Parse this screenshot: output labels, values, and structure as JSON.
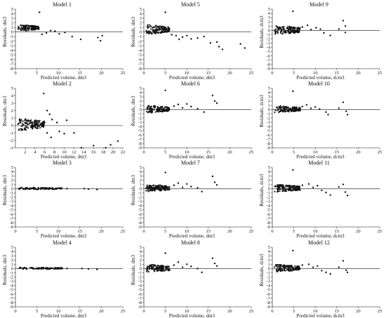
{
  "chart_data": [
    {
      "type": "scatter",
      "title": "Model 1",
      "xlabel": "Predicted volume, dm3",
      "ylabel": "Residuals, dm3",
      "xlim": [
        0,
        25
      ],
      "ylim": [
        -8,
        5
      ],
      "xticks": [
        0,
        5,
        10,
        15,
        20,
        25
      ],
      "yticks": [
        5,
        4,
        3,
        2,
        1,
        0,
        -1,
        -2,
        -3,
        -4,
        -5,
        -6,
        -7,
        -8
      ],
      "clusters": [
        {
          "x": [
            0.5,
            5.5
          ],
          "y": [
            0.2,
            1.6
          ],
          "n": 130
        }
      ],
      "points": [
        [
          5.6,
          4.3
        ],
        [
          6.2,
          -0.5
        ],
        [
          7.2,
          -0.2
        ],
        [
          8.2,
          0.3
        ],
        [
          9.2,
          0.2
        ],
        [
          10.2,
          -0.4
        ],
        [
          11.5,
          -0.1
        ],
        [
          13.2,
          -1.0
        ],
        [
          15.2,
          -1.6
        ],
        [
          19.2,
          -1.2
        ],
        [
          19.8,
          -1.9
        ],
        [
          20.2,
          -0.8
        ]
      ]
    },
    {
      "type": "scatter",
      "title": "Model 5",
      "xlabel": "Predicted volume, dm3",
      "ylabel": "Residuals, dm3",
      "xlim": [
        0,
        25
      ],
      "ylim": [
        -8,
        5
      ],
      "xticks": [
        0,
        5,
        10,
        15,
        20,
        25
      ],
      "yticks": [
        5,
        4,
        3,
        2,
        1,
        0,
        -1,
        -2,
        -3,
        -4,
        -5,
        -6,
        -7,
        -8
      ],
      "clusters": [
        {
          "x": [
            0.5,
            6
          ],
          "y": [
            -0.5,
            1.6
          ],
          "n": 130
        }
      ],
      "points": [
        [
          5.0,
          4.3
        ],
        [
          6.5,
          -0.6
        ],
        [
          7.5,
          -0.8
        ],
        [
          8.2,
          -1.6
        ],
        [
          9.0,
          -1.1
        ],
        [
          10.0,
          -0.8
        ],
        [
          11.0,
          -1.5
        ],
        [
          12.5,
          -1.3
        ],
        [
          14.0,
          -1.0
        ],
        [
          15.5,
          -2.4
        ],
        [
          17.0,
          -2.2
        ],
        [
          17.5,
          -3.2
        ],
        [
          18.3,
          -3.8
        ],
        [
          22.5,
          -2.6
        ],
        [
          23.5,
          -3.5
        ]
      ]
    },
    {
      "type": "scatter",
      "title": "Model 9",
      "xlabel": "Predicted volume, dcm3",
      "ylabel": "Residuals, dcm3",
      "xlim": [
        0,
        25
      ],
      "ylim": [
        -9,
        5
      ],
      "xticks": [
        0,
        5,
        10,
        15,
        20,
        25
      ],
      "yticks": [
        5,
        4,
        3,
        2,
        1,
        0,
        -1,
        -2,
        -3,
        -4,
        -5,
        -6,
        -7,
        -8,
        -9
      ],
      "clusters": [
        {
          "x": [
            0.5,
            6.5
          ],
          "y": [
            -1,
            1.2
          ],
          "n": 140
        }
      ],
      "points": [
        [
          4.8,
          4.5
        ],
        [
          7.0,
          0.8
        ],
        [
          8.2,
          1.2
        ],
        [
          9.0,
          0.2
        ],
        [
          10.2,
          0.6
        ],
        [
          11.2,
          0.3
        ],
        [
          12.0,
          -0.6
        ],
        [
          13.5,
          -1.2
        ],
        [
          15.5,
          0.3
        ],
        [
          16.5,
          2.3
        ],
        [
          17.0,
          1.0
        ],
        [
          17.0,
          -0.5
        ]
      ]
    },
    {
      "type": "scatter",
      "title": "Model 2",
      "xlabel": "Predicted volume, dm3",
      "ylabel": "Residuals, dm3",
      "xlim": [
        0,
        22
      ],
      "ylim": [
        -3,
        5
      ],
      "xticks": [
        2,
        4,
        6,
        8,
        10,
        12,
        14,
        16,
        18,
        20,
        22
      ],
      "yticks": [
        5,
        4,
        3,
        2,
        1,
        0,
        -1,
        -2,
        -3
      ],
      "clusters": [
        {
          "x": [
            0.5,
            6
          ],
          "y": [
            -0.7,
            1.0
          ],
          "n": 140
        }
      ],
      "points": [
        [
          5.8,
          4.3
        ],
        [
          6.5,
          2.0
        ],
        [
          7.0,
          1.5
        ],
        [
          7.5,
          0.8
        ],
        [
          8.5,
          0.4
        ],
        [
          6.5,
          -1.0
        ],
        [
          7.3,
          -1.6
        ],
        [
          9.0,
          -0.8
        ],
        [
          10.0,
          -1.1
        ],
        [
          10.5,
          0.7
        ],
        [
          12.0,
          -1.0
        ],
        [
          13.5,
          -3.0
        ],
        [
          16.0,
          -2.7
        ],
        [
          18.5,
          -3.0
        ],
        [
          19.5,
          -2.6
        ],
        [
          21.0,
          -2.1
        ]
      ]
    },
    {
      "type": "scatter",
      "title": "Model 6",
      "xlabel": "Predicted volume, dm3",
      "ylabel": "Residuals, dm3",
      "xlim": [
        0,
        25
      ],
      "ylim": [
        -9,
        5
      ],
      "xticks": [
        0,
        5,
        10,
        15,
        20,
        25
      ],
      "yticks": [
        5,
        4,
        3,
        2,
        1,
        0,
        -1,
        -2,
        -3,
        -4,
        -5,
        -6,
        -7,
        -8,
        -9
      ],
      "clusters": [
        {
          "x": [
            0.5,
            6
          ],
          "y": [
            -0.8,
            1.0
          ],
          "n": 140
        }
      ],
      "points": [
        [
          5.0,
          4.5
        ],
        [
          7.0,
          0.8
        ],
        [
          8.0,
          1.2
        ],
        [
          9.0,
          0.4
        ],
        [
          10.0,
          1.3
        ],
        [
          11.0,
          0.7
        ],
        [
          12.5,
          0.2
        ],
        [
          14.0,
          -0.6
        ],
        [
          16.0,
          3.3
        ],
        [
          16.5,
          2.0
        ],
        [
          17.0,
          1.5
        ]
      ]
    },
    {
      "type": "scatter",
      "title": "Model 10",
      "xlabel": "Predicted volume, dcm3",
      "ylabel": "Residuals, dcm3",
      "xlim": [
        0,
        25
      ],
      "ylim": [
        -9,
        5
      ],
      "xticks": [
        0,
        5,
        10,
        15,
        20,
        25
      ],
      "yticks": [
        5,
        4,
        3,
        2,
        1,
        0,
        -1,
        -2,
        -3,
        -4,
        -5,
        -6,
        -7,
        -8,
        -9
      ],
      "clusters": [
        {
          "x": [
            0.5,
            6.5
          ],
          "y": [
            -0.7,
            0.9
          ],
          "n": 140
        }
      ],
      "points": [
        [
          4.8,
          4.3
        ],
        [
          7.0,
          0.7
        ],
        [
          8.0,
          1.1
        ],
        [
          9.0,
          0.3
        ],
        [
          10.0,
          0.6
        ],
        [
          11.0,
          0.1
        ],
        [
          12.5,
          -0.6
        ],
        [
          13.0,
          -1.2
        ],
        [
          15.5,
          0.3
        ],
        [
          16.5,
          1.7
        ],
        [
          17.2,
          -0.4
        ],
        [
          17.5,
          -1.2
        ]
      ]
    },
    {
      "type": "scatter",
      "title": "Model 3",
      "xlabel": "Predicted volume, dm3",
      "ylabel": "Residuals, dm3",
      "xlim": [
        0,
        25
      ],
      "ylim": [
        -9,
        5
      ],
      "xticks": [
        0,
        5,
        10,
        15,
        20,
        25
      ],
      "yticks": [
        5,
        4,
        3,
        2,
        1,
        0,
        -1,
        -2,
        -3,
        -4,
        -5,
        -6,
        -7,
        -8,
        -9
      ],
      "clusters": [
        {
          "x": [
            0.5,
            11
          ],
          "y": [
            -0.2,
            0.3
          ],
          "n": 110
        }
      ],
      "points": [
        [
          12.0,
          0.0
        ],
        [
          16.0,
          0.0
        ],
        [
          17.0,
          -0.1
        ],
        [
          19.0,
          -0.2
        ],
        [
          7.0,
          0.1
        ],
        [
          9.0,
          -0.1
        ]
      ]
    },
    {
      "type": "scatter",
      "title": "Model 7",
      "xlabel": "Predicted volume, dm3",
      "ylabel": "Residuals, dm3",
      "xlim": [
        0,
        25
      ],
      "ylim": [
        -9,
        5
      ],
      "xticks": [
        0,
        5,
        10,
        15,
        20,
        25
      ],
      "yticks": [
        5,
        4,
        3,
        2,
        1,
        0,
        -1,
        -2,
        -3,
        -4,
        -5,
        -6,
        -7,
        -8,
        -9
      ],
      "clusters": [
        {
          "x": [
            0.5,
            6
          ],
          "y": [
            -0.7,
            1.0
          ],
          "n": 140
        }
      ],
      "points": [
        [
          5.0,
          3.8
        ],
        [
          7.0,
          0.8
        ],
        [
          8.0,
          1.3
        ],
        [
          9.0,
          0.3
        ],
        [
          10.0,
          1.1
        ],
        [
          11.0,
          0.5
        ],
        [
          12.5,
          0.2
        ],
        [
          13.5,
          -0.7
        ],
        [
          16.0,
          2.9
        ],
        [
          16.5,
          1.5
        ],
        [
          17.0,
          0.9
        ]
      ]
    },
    {
      "type": "scatter",
      "title": "Model 11",
      "xlabel": "Predicted volume, dcm3",
      "ylabel": "Residuals, dcm3",
      "xlim": [
        0,
        25
      ],
      "ylim": [
        -9,
        5
      ],
      "xticks": [
        0,
        5,
        10,
        15,
        20,
        25
      ],
      "yticks": [
        5,
        4,
        3,
        2,
        1,
        0,
        -1,
        -2,
        -3,
        -4,
        -5,
        -6,
        -7,
        -8,
        -9
      ],
      "clusters": [
        {
          "x": [
            0.5,
            6.5
          ],
          "y": [
            -0.8,
            1.0
          ],
          "n": 140
        }
      ],
      "points": [
        [
          4.8,
          4.4
        ],
        [
          7.0,
          0.8
        ],
        [
          8.5,
          1.1
        ],
        [
          9.5,
          0.3
        ],
        [
          10.5,
          0.7
        ],
        [
          11.5,
          -0.4
        ],
        [
          12.5,
          -0.9
        ],
        [
          13.5,
          -1.5
        ],
        [
          15.5,
          0.4
        ],
        [
          16.5,
          1.0
        ],
        [
          17.0,
          -0.8
        ],
        [
          17.5,
          -1.6
        ]
      ]
    },
    {
      "type": "scatter",
      "title": "Model 4",
      "xlabel": "Predicted volume, dm3",
      "ylabel": "Residuals, dm3",
      "xlim": [
        0,
        25
      ],
      "ylim": [
        -9,
        5
      ],
      "xticks": [
        0,
        5,
        10,
        15,
        20,
        25
      ],
      "yticks": [
        5,
        4,
        3,
        2,
        1,
        0,
        -1,
        -2,
        -3,
        -4,
        -5,
        -6,
        -7,
        -8,
        -9
      ],
      "clusters": [
        {
          "x": [
            0.5,
            11
          ],
          "y": [
            -0.2,
            0.3
          ],
          "n": 110
        }
      ],
      "points": [
        [
          12.0,
          0.0
        ],
        [
          15.5,
          0.0
        ],
        [
          17.0,
          -0.1
        ],
        [
          19.0,
          -0.2
        ],
        [
          7.0,
          0.1
        ],
        [
          9.0,
          -0.1
        ]
      ]
    },
    {
      "type": "scatter",
      "title": "Model 8",
      "xlabel": "Predicted volume, dm3",
      "ylabel": "Residuals, dm3",
      "xlim": [
        0,
        25
      ],
      "ylim": [
        -9,
        5
      ],
      "xticks": [
        0,
        5,
        10,
        15,
        20,
        25
      ],
      "yticks": [
        5,
        4,
        3,
        2,
        1,
        0,
        -1,
        -2,
        -3,
        -4,
        -5,
        -6,
        -7,
        -8,
        -9
      ],
      "clusters": [
        {
          "x": [
            0.5,
            6
          ],
          "y": [
            -0.9,
            1.0
          ],
          "n": 140
        }
      ],
      "points": [
        [
          5.0,
          3.6
        ],
        [
          7.0,
          0.8
        ],
        [
          8.0,
          1.5
        ],
        [
          9.0,
          0.3
        ],
        [
          10.0,
          1.0
        ],
        [
          11.0,
          0.5
        ],
        [
          12.5,
          0.0
        ],
        [
          13.5,
          -0.9
        ],
        [
          16.0,
          2.4
        ],
        [
          16.5,
          1.2
        ],
        [
          17.0,
          0.6
        ]
      ]
    },
    {
      "type": "scatter",
      "title": "Model 12",
      "xlabel": "Predicted volume, dcm3",
      "ylabel": "Residuals, dcm3",
      "xlim": [
        0,
        25
      ],
      "ylim": [
        -9,
        5
      ],
      "xticks": [
        0,
        5,
        10,
        15,
        20,
        25
      ],
      "yticks": [
        5,
        4,
        3,
        2,
        1,
        0,
        -1,
        -2,
        -3,
        -4,
        -5,
        -6,
        -7,
        -8,
        -9
      ],
      "clusters": [
        {
          "x": [
            0.5,
            6.5
          ],
          "y": [
            -0.8,
            1.0
          ],
          "n": 140
        }
      ],
      "points": [
        [
          4.8,
          4.2
        ],
        [
          7.0,
          0.8
        ],
        [
          8.5,
          1.0
        ],
        [
          9.5,
          0.3
        ],
        [
          10.5,
          0.6
        ],
        [
          11.5,
          -0.5
        ],
        [
          12.5,
          -0.9
        ],
        [
          13.5,
          -1.3
        ],
        [
          15.5,
          0.3
        ],
        [
          16.5,
          1.8
        ],
        [
          17.2,
          -0.4
        ],
        [
          17.5,
          -0.9
        ]
      ]
    }
  ]
}
